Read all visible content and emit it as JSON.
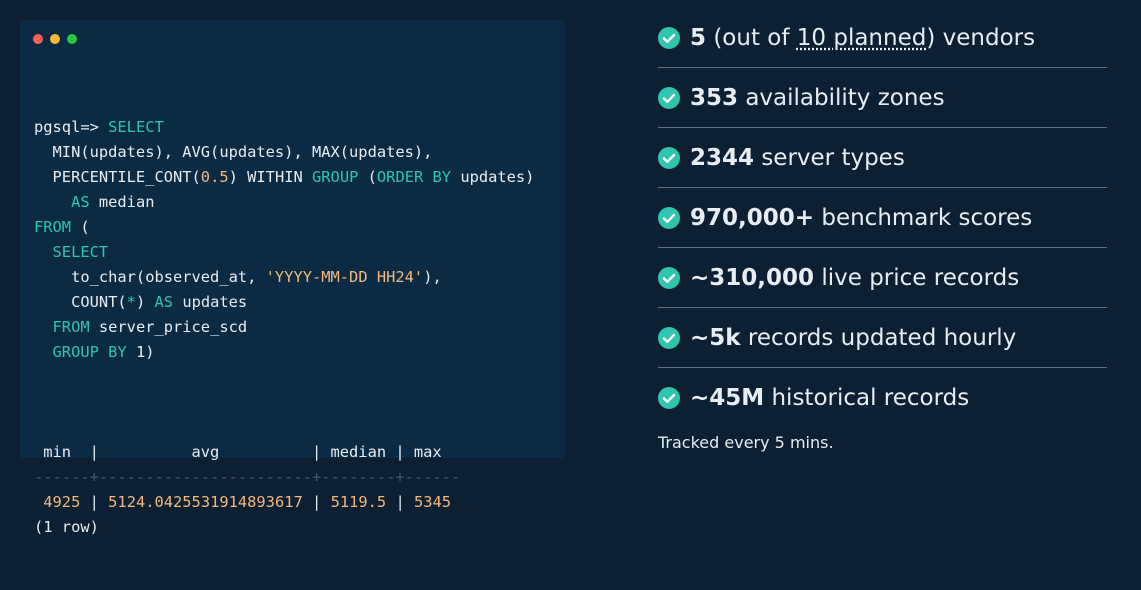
{
  "code": {
    "lines": [
      [
        {
          "text": "pgsql=> ",
          "color": "#e6edf3"
        },
        {
          "text": "SELECT",
          "color": "#2ec4b0"
        }
      ],
      [
        {
          "text": "  MIN(updates), AVG(updates), MAX(updates),",
          "color": "#e6edf3"
        }
      ],
      [
        {
          "text": "  PERCENTILE_CONT(",
          "color": "#e6edf3"
        },
        {
          "text": "0.5",
          "color": "#f4b97a"
        },
        {
          "text": ") WITHIN ",
          "color": "#e6edf3"
        },
        {
          "text": "GROUP",
          "color": "#2ec4b0"
        },
        {
          "text": " (",
          "color": "#e6edf3"
        },
        {
          "text": "ORDER BY",
          "color": "#2ec4b0"
        },
        {
          "text": " updates)",
          "color": "#e6edf3"
        }
      ],
      [
        {
          "text": "    AS",
          "color": "#2ec4b0"
        },
        {
          "text": " median",
          "color": "#e6edf3"
        }
      ],
      [
        {
          "text": "FROM",
          "color": "#2ec4b0"
        },
        {
          "text": " (",
          "color": "#e6edf3"
        }
      ],
      [
        {
          "text": "  SELECT",
          "color": "#2ec4b0"
        }
      ],
      [
        {
          "text": "    to_char(observed_at, ",
          "color": "#e6edf3"
        },
        {
          "text": "'YYYY-MM-DD HH24'",
          "color": "#f4b97a"
        },
        {
          "text": "),",
          "color": "#e6edf3"
        }
      ],
      [
        {
          "text": "    COUNT(",
          "color": "#e6edf3"
        },
        {
          "text": "*",
          "color": "#2ec4b0"
        },
        {
          "text": ") ",
          "color": "#e6edf3"
        },
        {
          "text": "AS",
          "color": "#2ec4b0"
        },
        {
          "text": " updates",
          "color": "#e6edf3"
        }
      ],
      [
        {
          "text": "  FROM",
          "color": "#2ec4b0"
        },
        {
          "text": " server_price_scd",
          "color": "#e6edf3"
        }
      ],
      [
        {
          "text": "  GROUP BY",
          "color": "#2ec4b0"
        },
        {
          "text": " 1)",
          "color": "#e6edf3"
        }
      ]
    ],
    "result": [
      [
        {
          "text": " min  |          avg          | median | max",
          "color": "#e6edf3"
        }
      ],
      [
        {
          "text": "------+-----------------------+--------+------",
          "color": "#3f5a70"
        }
      ],
      [
        {
          "text": " 4925",
          "color": "#f4b97a"
        },
        {
          "text": " | ",
          "color": "#e6edf3"
        },
        {
          "text": "5124.0425531914893617",
          "color": "#f4b97a"
        },
        {
          "text": " | ",
          "color": "#e6edf3"
        },
        {
          "text": "5119.5",
          "color": "#f4b97a"
        },
        {
          "text": " | ",
          "color": "#e6edf3"
        },
        {
          "text": "5345",
          "color": "#f4b97a"
        }
      ],
      [
        {
          "text": "(1 row)",
          "color": "#e6edf3"
        }
      ]
    ]
  },
  "stats": {
    "items": [
      {
        "bold": "5",
        "text": " (out of ",
        "link": "10 planned",
        "after": ") vendors"
      },
      {
        "bold": "353",
        "text": " availability zones"
      },
      {
        "bold": "2344",
        "text": " server types"
      },
      {
        "bold": "970,000+",
        "text": " benchmark scores"
      },
      {
        "bold": "~310,000",
        "text": " live price records"
      },
      {
        "bold": "~5k",
        "text": " records updated hourly"
      },
      {
        "bold": "~45M",
        "text": " historical records"
      }
    ],
    "footer": "Tracked every 5 mins."
  }
}
